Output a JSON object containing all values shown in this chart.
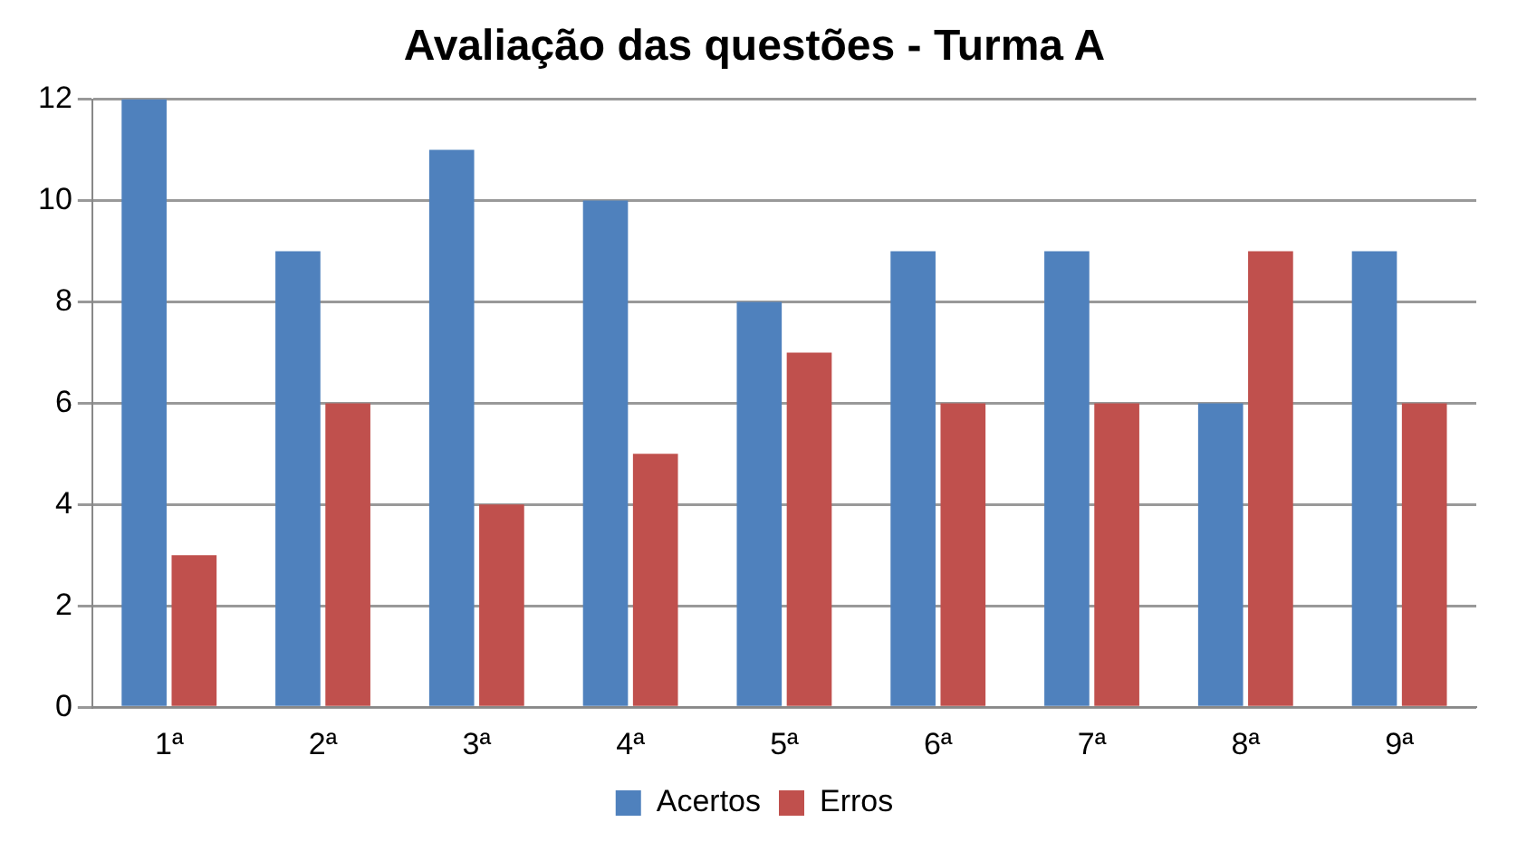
{
  "chart_data": {
    "type": "bar",
    "title": "Avaliação das questões - Turma A",
    "categories": [
      "1ª",
      "2ª",
      "3ª",
      "4ª",
      "5ª",
      "6ª",
      "7ª",
      "8ª",
      "9ª"
    ],
    "series": [
      {
        "name": "Acertos",
        "color": "#4f81bd",
        "values": [
          12,
          9,
          11,
          10,
          8,
          9,
          9,
          6,
          9
        ]
      },
      {
        "name": "Erros",
        "color": "#c0504d",
        "values": [
          3,
          6,
          4,
          5,
          7,
          6,
          6,
          9,
          6
        ]
      }
    ],
    "ylim": [
      0,
      12
    ],
    "yticks": [
      0,
      2,
      4,
      6,
      8,
      10,
      12
    ],
    "grid": "y",
    "legend": "bottom"
  }
}
